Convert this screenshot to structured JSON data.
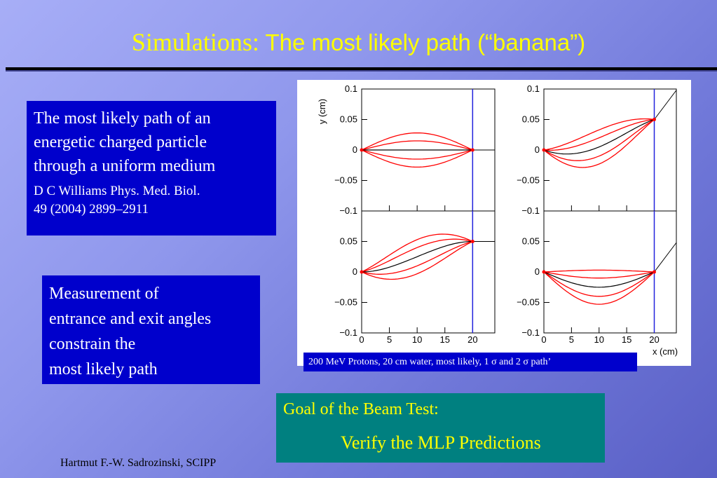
{
  "slide": {
    "title_part1": "Simulations:",
    "title_part2": " The most likely path (“banana”)",
    "box1_text": "The most likely path of an\nenergetic charged particle\nthrough a uniform medium",
    "box1_ref": "D C Williams Phys. Med. Biol.\n49 (2004) 2899–2911",
    "box2_text": "Measurement of\nentrance and exit angles\nconstrain the\nmost likely path",
    "caption": "200 MeV Protons, 20 cm water, most likely, 1 σ and 2 σ path’",
    "goal_title": "Goal of the Beam Test:",
    "goal_text": "Verify the MLP Predictions",
    "footer": "Hartmut F.-W. Sadrozinski, SCIPP"
  },
  "colors": {
    "title": "#ffff00",
    "box_blue": "#0000cc",
    "goal_teal": "#008080",
    "curve_red": "#ff0000",
    "exit_line_blue": "#2222dd"
  },
  "chart_data": {
    "type": "line",
    "ylabel": "y (cm)",
    "xlabel": "x (cm)",
    "x_ticks": [
      "0",
      "5",
      "10",
      "15",
      "20"
    ],
    "y_ticks_top": [
      "0.1",
      "0.05",
      "0",
      "−0.05",
      "−0.1"
    ],
    "y_ticks_bottom": [
      "0.05",
      "0",
      "−0.05",
      "−0.1"
    ],
    "xlim": [
      0,
      24
    ],
    "ylim": [
      -0.1,
      0.1
    ],
    "exit_plane_x": 20,
    "panels": [
      {
        "exit_y": 0.0,
        "slope_after": 0.0
      },
      {
        "exit_y": 0.05,
        "slope_after": 0.012
      },
      {
        "exit_y": 0.05,
        "slope_after": 0.0
      },
      {
        "exit_y": 0.0,
        "slope_after": 0.012
      }
    ],
    "paths_note": "mlp path plus 1 and 2 sigma envelopes",
    "sigma1_amp": 0.015,
    "sigma2_amp": 0.028,
    "mlp_sag": [
      0.0,
      -0.02,
      0.0,
      -0.025
    ]
  }
}
